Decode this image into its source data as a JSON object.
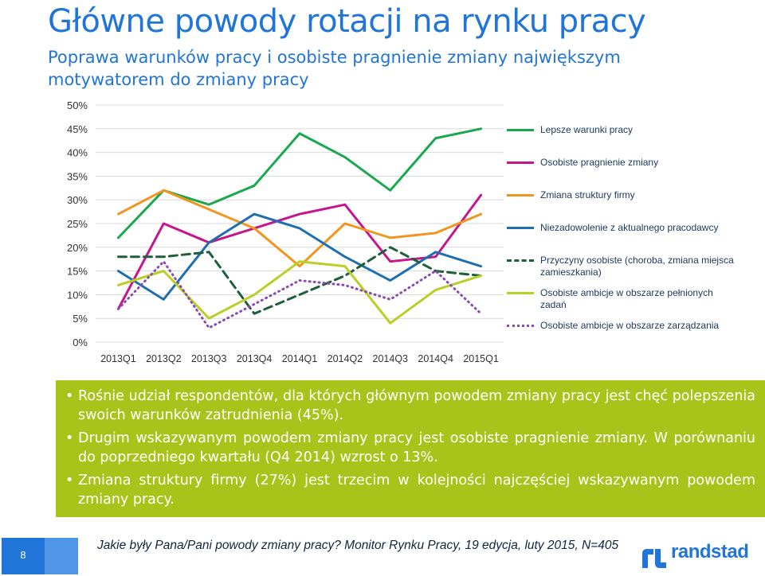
{
  "header": {
    "title": "Główne powody rotacji na rynku pracy",
    "subtitle": "Poprawa warunków pracy i osobiste pragnienie zmiany największym motywatorem do zmiany pracy"
  },
  "chart_data": {
    "type": "line",
    "title": "",
    "xlabel": "",
    "ylabel": "",
    "ylim": [
      0,
      50
    ],
    "y_ticks": [
      "0%",
      "5%",
      "10%",
      "15%",
      "20%",
      "25%",
      "30%",
      "35%",
      "40%",
      "45%",
      "50%"
    ],
    "categories": [
      "2013Q1",
      "2013Q2",
      "2013Q3",
      "2013Q4",
      "2014Q1",
      "2014Q2",
      "2014Q3",
      "2014Q4",
      "2015Q1"
    ],
    "grid": "horizontal",
    "legend_position": "right",
    "series": [
      {
        "name": "Lepsze warunki pracy",
        "color": "#1aa84f",
        "dash": "solid",
        "values": [
          22,
          32,
          29,
          33,
          44,
          39,
          32,
          43,
          45
        ]
      },
      {
        "name": "Osobiste pragnienie zmiany",
        "color": "#c4178c",
        "dash": "solid",
        "values": [
          7,
          25,
          21,
          24,
          27,
          29,
          17,
          18,
          31
        ]
      },
      {
        "name": "Zmiana struktury firmy",
        "color": "#f0961e",
        "dash": "solid",
        "values": [
          27,
          32,
          28,
          24,
          16,
          25,
          22,
          23,
          27
        ]
      },
      {
        "name": "Niezadowolenie z aktualnego pracodawcy",
        "color": "#1f6eb0",
        "dash": "solid",
        "values": [
          15,
          9,
          21,
          27,
          24,
          18,
          13,
          19,
          16
        ]
      },
      {
        "name": "Przyczyny osobiste (choroba, zmiana miejsca zamieszkania)",
        "color": "#1e5e3a",
        "dash": "dashed",
        "values": [
          18,
          18,
          19,
          6,
          10,
          14,
          20,
          15,
          14
        ]
      },
      {
        "name": "Osobiste ambicje w obszarze pełnionych zadań",
        "color": "#b9cf26",
        "dash": "solid",
        "values": [
          12,
          15,
          5,
          10,
          17,
          16,
          4,
          11,
          14
        ]
      },
      {
        "name": "Osobiste ambicje w obszarze zarządzania",
        "color": "#8a4bb0",
        "dash": "dotted",
        "values": [
          7,
          17,
          3,
          8,
          13,
          12,
          9,
          15,
          6
        ]
      }
    ]
  },
  "summary": {
    "bullets": [
      "Rośnie udział respondentów, dla których głównym powodem zmiany pracy jest chęć polepszenia swoich warunków zatrudnienia (45%).",
      "Drugim wskazywanym powodem zmiany pracy jest osobiste pragnienie zmiany. W porównaniu do poprzedniego kwartału (Q4 2014) wzrost o 13%.",
      "Zmiana struktury firmy (27%) jest trzecim w kolejności najczęściej wskazywanym powodem zmiany pracy."
    ]
  },
  "footer": {
    "page_number": "8",
    "source": "Jakie były Pana/Pani powody zmiany pracy? Monitor Rynku Pracy, 19 edycja, luty 2015, N=405",
    "logo_text": "randstad",
    "logo_icon": "randstad-logo-icon"
  }
}
